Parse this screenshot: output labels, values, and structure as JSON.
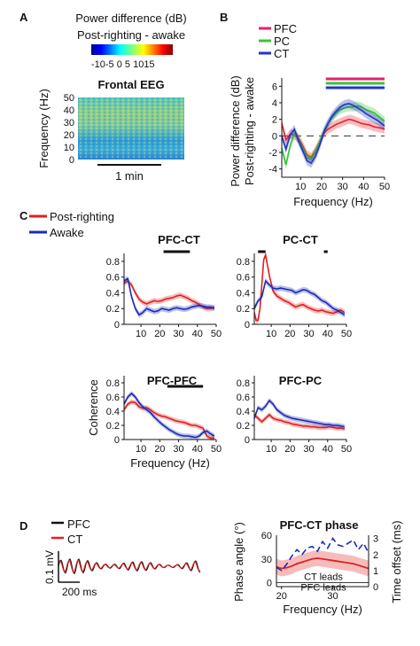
{
  "panel_letters": {
    "a": "A",
    "b": "B",
    "c": "C",
    "d": "D"
  },
  "colors": {
    "pfc": "#e8202a",
    "pc": "#35c535",
    "ct": "#2233cc",
    "bar_pfc": "#e5206c",
    "awake": "#1a2bb8",
    "post_righting": "#e02020",
    "black": "#111111"
  },
  "chart_data": [
    {
      "id": "A",
      "type": "heatmap",
      "title": "Frontal EEG",
      "colorbar_title_line1": "Power difference (dB)",
      "colorbar_title_line2": "Post-righting - awake",
      "colorbar_ticks_label": "-10-5 0 5 1015",
      "colorbar_range": [
        -10,
        15
      ],
      "ylabel": "Frequency (Hz)",
      "yticks": [
        "50",
        "40",
        "30",
        "20",
        "10",
        "0"
      ],
      "ylim": [
        0,
        50
      ],
      "xlabel": "1 min"
    },
    {
      "id": "B",
      "type": "line",
      "ylabel_line1": "Power difference (dB)",
      "ylabel_line2": "Post-righting - awake",
      "xlabel": "Frequency (Hz)",
      "xticks": [
        "10",
        "20",
        "30",
        "40",
        "50"
      ],
      "yticks": [
        "6",
        "4",
        "2",
        "0",
        "-2",
        "-4"
      ],
      "xlim": [
        1,
        50
      ],
      "ylim": [
        -5,
        7
      ],
      "legend": [
        "PFC",
        "PC",
        "CT"
      ],
      "significance_bars": [
        {
          "series": "PFC",
          "from": 22,
          "to": 50
        },
        {
          "series": "PC",
          "from": 22,
          "to": 50
        },
        {
          "series": "CT",
          "from": 22,
          "to": 50
        }
      ],
      "series": [
        {
          "name": "PFC",
          "x": [
            1,
            3,
            5,
            7,
            9,
            11,
            13,
            15,
            17,
            19,
            21,
            23,
            25,
            27,
            29,
            31,
            33,
            35,
            37,
            39,
            41,
            43,
            45,
            47,
            49,
            50
          ],
          "y": [
            1.5,
            -0.5,
            0.2,
            0.1,
            -0.3,
            -1.2,
            -2.3,
            -2.6,
            -1.8,
            -0.8,
            0.3,
            0.8,
            1.1,
            1.4,
            1.6,
            1.8,
            2,
            1.9,
            1.7,
            1.5,
            1.4,
            1.3,
            1.1,
            1.0,
            0.9,
            0.8
          ]
        },
        {
          "name": "PC",
          "x": [
            1,
            3,
            5,
            7,
            9,
            11,
            13,
            15,
            17,
            19,
            21,
            23,
            25,
            27,
            29,
            31,
            33,
            35,
            37,
            39,
            41,
            43,
            45,
            47,
            49,
            50
          ],
          "y": [
            -1.5,
            -3.5,
            -1.2,
            0.3,
            -0.5,
            -1.5,
            -2.6,
            -2.8,
            -2.0,
            -0.8,
            0.5,
            1.5,
            2.2,
            2.8,
            3.2,
            3.4,
            3.5,
            3.5,
            3.6,
            3.5,
            3.2,
            3.0,
            2.8,
            2.4,
            2.0,
            1.8
          ]
        },
        {
          "name": "CT",
          "x": [
            1,
            3,
            5,
            7,
            9,
            11,
            13,
            15,
            17,
            19,
            21,
            23,
            25,
            27,
            29,
            31,
            33,
            35,
            37,
            39,
            41,
            43,
            45,
            47,
            49,
            50
          ],
          "y": [
            0,
            -1.6,
            0.1,
            0.8,
            -0.6,
            -1.8,
            -3.0,
            -3.3,
            -2.5,
            -1.2,
            0.4,
            1.5,
            2.4,
            3.0,
            3.5,
            3.8,
            3.9,
            3.7,
            3.4,
            3.1,
            2.7,
            2.4,
            2.1,
            1.8,
            1.4,
            1.2
          ]
        }
      ]
    },
    {
      "id": "C",
      "type": "line",
      "legend": [
        "Post-righting",
        "Awake"
      ],
      "ylabel": "Coherence",
      "xlabel": "Frequency (Hz)",
      "xticks": [
        "10",
        "20",
        "30",
        "40",
        "50"
      ],
      "yticks": [
        "0.8",
        "0.6",
        "0.4",
        "0.2",
        "0"
      ],
      "xlim": [
        1,
        50
      ],
      "ylim": [
        0,
        0.9
      ],
      "subplots": [
        {
          "title": "PFC-CT",
          "significance_bars": [
            {
              "from": 22,
              "to": 36
            }
          ],
          "series": [
            {
              "name": "Post-righting",
              "x": [
                1,
                3,
                5,
                7,
                9,
                11,
                13,
                15,
                17,
                19,
                21,
                23,
                25,
                27,
                29,
                31,
                33,
                35,
                37,
                39,
                41,
                43,
                45,
                47,
                49
              ],
              "y": [
                0.52,
                0.55,
                0.5,
                0.4,
                0.32,
                0.28,
                0.26,
                0.28,
                0.3,
                0.29,
                0.3,
                0.32,
                0.33,
                0.34,
                0.36,
                0.37,
                0.35,
                0.33,
                0.3,
                0.28,
                0.25,
                0.22,
                0.2,
                0.2,
                0.22
              ]
            },
            {
              "name": "Awake",
              "x": [
                1,
                3,
                5,
                7,
                9,
                11,
                13,
                15,
                17,
                19,
                21,
                23,
                25,
                27,
                29,
                31,
                33,
                35,
                37,
                39,
                41,
                43,
                45,
                47,
                49
              ],
              "y": [
                0.55,
                0.58,
                0.35,
                0.2,
                0.12,
                0.15,
                0.2,
                0.18,
                0.16,
                0.17,
                0.2,
                0.19,
                0.18,
                0.2,
                0.21,
                0.2,
                0.19,
                0.2,
                0.22,
                0.23,
                0.24,
                0.23,
                0.22,
                0.22,
                0.2
              ]
            }
          ]
        },
        {
          "title": "PC-CT",
          "significance_bars": [
            {
              "from": 3,
              "to": 7
            },
            {
              "from": 38,
              "to": 40
            }
          ],
          "series": [
            {
              "name": "Post-righting",
              "x": [
                1,
                2,
                3,
                4,
                5,
                6,
                7,
                9,
                11,
                13,
                15,
                17,
                19,
                21,
                23,
                25,
                27,
                29,
                31,
                33,
                35,
                37,
                39,
                41,
                43,
                45,
                47,
                49
              ],
              "y": [
                0.15,
                0.05,
                0.05,
                0.2,
                0.5,
                0.82,
                0.88,
                0.62,
                0.42,
                0.36,
                0.33,
                0.3,
                0.28,
                0.25,
                0.22,
                0.24,
                0.25,
                0.22,
                0.2,
                0.18,
                0.17,
                0.18,
                0.16,
                0.15,
                0.14,
                0.16,
                0.18,
                0.15
              ]
            },
            {
              "name": "Awake",
              "x": [
                1,
                2,
                3,
                4,
                5,
                6,
                7,
                9,
                11,
                13,
                15,
                17,
                19,
                21,
                23,
                25,
                27,
                29,
                31,
                33,
                35,
                37,
                39,
                41,
                43,
                45,
                47,
                49
              ],
              "y": [
                0.2,
                0.25,
                0.3,
                0.32,
                0.35,
                0.45,
                0.55,
                0.5,
                0.46,
                0.45,
                0.46,
                0.45,
                0.44,
                0.43,
                0.4,
                0.42,
                0.44,
                0.43,
                0.4,
                0.38,
                0.34,
                0.3,
                0.28,
                0.24,
                0.2,
                0.18,
                0.15,
                0.12
              ]
            }
          ]
        },
        {
          "title": "PFC-PFC",
          "significance_bars": [
            {
              "from": 24,
              "to": 43
            }
          ],
          "series": [
            {
              "name": "Post-righting",
              "x": [
                1,
                3,
                5,
                7,
                9,
                11,
                13,
                15,
                17,
                19,
                21,
                23,
                25,
                27,
                29,
                31,
                33,
                35,
                37,
                39,
                41,
                43,
                45,
                47,
                49
              ],
              "y": [
                0.42,
                0.5,
                0.53,
                0.52,
                0.46,
                0.44,
                0.45,
                0.42,
                0.38,
                0.35,
                0.33,
                0.32,
                0.3,
                0.28,
                0.26,
                0.25,
                0.24,
                0.22,
                0.2,
                0.2,
                0.18,
                0.16,
                0.05,
                0.02,
                0.02
              ]
            },
            {
              "name": "Awake",
              "x": [
                1,
                3,
                5,
                7,
                9,
                11,
                13,
                15,
                17,
                19,
                21,
                23,
                25,
                27,
                29,
                31,
                33,
                35,
                37,
                39,
                41,
                43,
                45,
                47,
                49
              ],
              "y": [
                0.5,
                0.6,
                0.65,
                0.6,
                0.52,
                0.46,
                0.42,
                0.38,
                0.32,
                0.27,
                0.22,
                0.18,
                0.14,
                0.11,
                0.08,
                0.06,
                0.05,
                0.05,
                0.04,
                0.03,
                0.05,
                0.1,
                0.12,
                0.08,
                0.05
              ]
            }
          ]
        },
        {
          "title": "PFC-PC",
          "significance_bars": [],
          "series": [
            {
              "name": "Post-righting",
              "x": [
                1,
                3,
                5,
                7,
                9,
                11,
                13,
                15,
                17,
                19,
                21,
                23,
                25,
                27,
                29,
                31,
                33,
                35,
                37,
                39,
                41,
                43,
                45,
                47,
                49
              ],
              "y": [
                0.35,
                0.3,
                0.25,
                0.3,
                0.35,
                0.3,
                0.28,
                0.27,
                0.25,
                0.24,
                0.22,
                0.21,
                0.2,
                0.19,
                0.19,
                0.18,
                0.18,
                0.17,
                0.17,
                0.17,
                0.18,
                0.17,
                0.16,
                0.16,
                0.15
              ]
            },
            {
              "name": "Awake",
              "x": [
                1,
                3,
                5,
                7,
                9,
                11,
                13,
                15,
                17,
                19,
                21,
                23,
                25,
                27,
                29,
                31,
                33,
                35,
                37,
                39,
                41,
                43,
                45,
                47,
                49
              ],
              "y": [
                0.3,
                0.45,
                0.42,
                0.47,
                0.55,
                0.5,
                0.42,
                0.38,
                0.34,
                0.32,
                0.3,
                0.29,
                0.28,
                0.27,
                0.26,
                0.25,
                0.24,
                0.23,
                0.22,
                0.21,
                0.21,
                0.2,
                0.2,
                0.19,
                0.18
              ]
            }
          ]
        }
      ]
    },
    {
      "id": "D-left",
      "type": "line",
      "legend": [
        "PFC",
        "CT"
      ],
      "scalebar_v": "0.1 mV",
      "scalebar_h": "200 ms"
    },
    {
      "id": "D-right",
      "type": "line",
      "title": "PFC-CT phase",
      "ylabel_left": "Phase angle (°)",
      "ylabel_right": "Time offset (ms)",
      "xlabel": "Frequency (Hz)",
      "xticks": [
        "20",
        "30"
      ],
      "yticks_left": [
        "60",
        "30",
        "0"
      ],
      "yticks_right": [
        "3",
        "2",
        "1",
        "0"
      ],
      "xlim": [
        19,
        37
      ],
      "ylim_left": [
        -5,
        60
      ],
      "ylim_right": [
        0,
        3.2
      ],
      "annotations": [
        "CT leads",
        "PFC leads"
      ],
      "series": [
        {
          "name": "Phase angle",
          "x": [
            19,
            20,
            21,
            22,
            23,
            24,
            25,
            26,
            27,
            28,
            29,
            30,
            31,
            32,
            33,
            34,
            35,
            36,
            37
          ],
          "y": [
            20,
            18,
            19,
            21,
            24,
            26,
            28,
            30,
            31,
            30,
            29,
            28,
            27,
            26,
            25,
            24,
            22,
            20,
            18
          ]
        },
        {
          "name": "Time offset",
          "x": [
            19,
            20,
            21,
            22,
            23,
            24,
            25,
            26,
            27,
            28,
            29,
            30,
            31,
            32,
            33,
            34,
            35,
            36,
            37
          ],
          "y": [
            1.2,
            1.0,
            1.4,
            1.9,
            2.3,
            2.0,
            2.4,
            2.5,
            2.2,
            2.8,
            2.4,
            3.0,
            2.6,
            2.5,
            2.7,
            2.9,
            2.3,
            2.7,
            2.1
          ]
        }
      ]
    }
  ]
}
